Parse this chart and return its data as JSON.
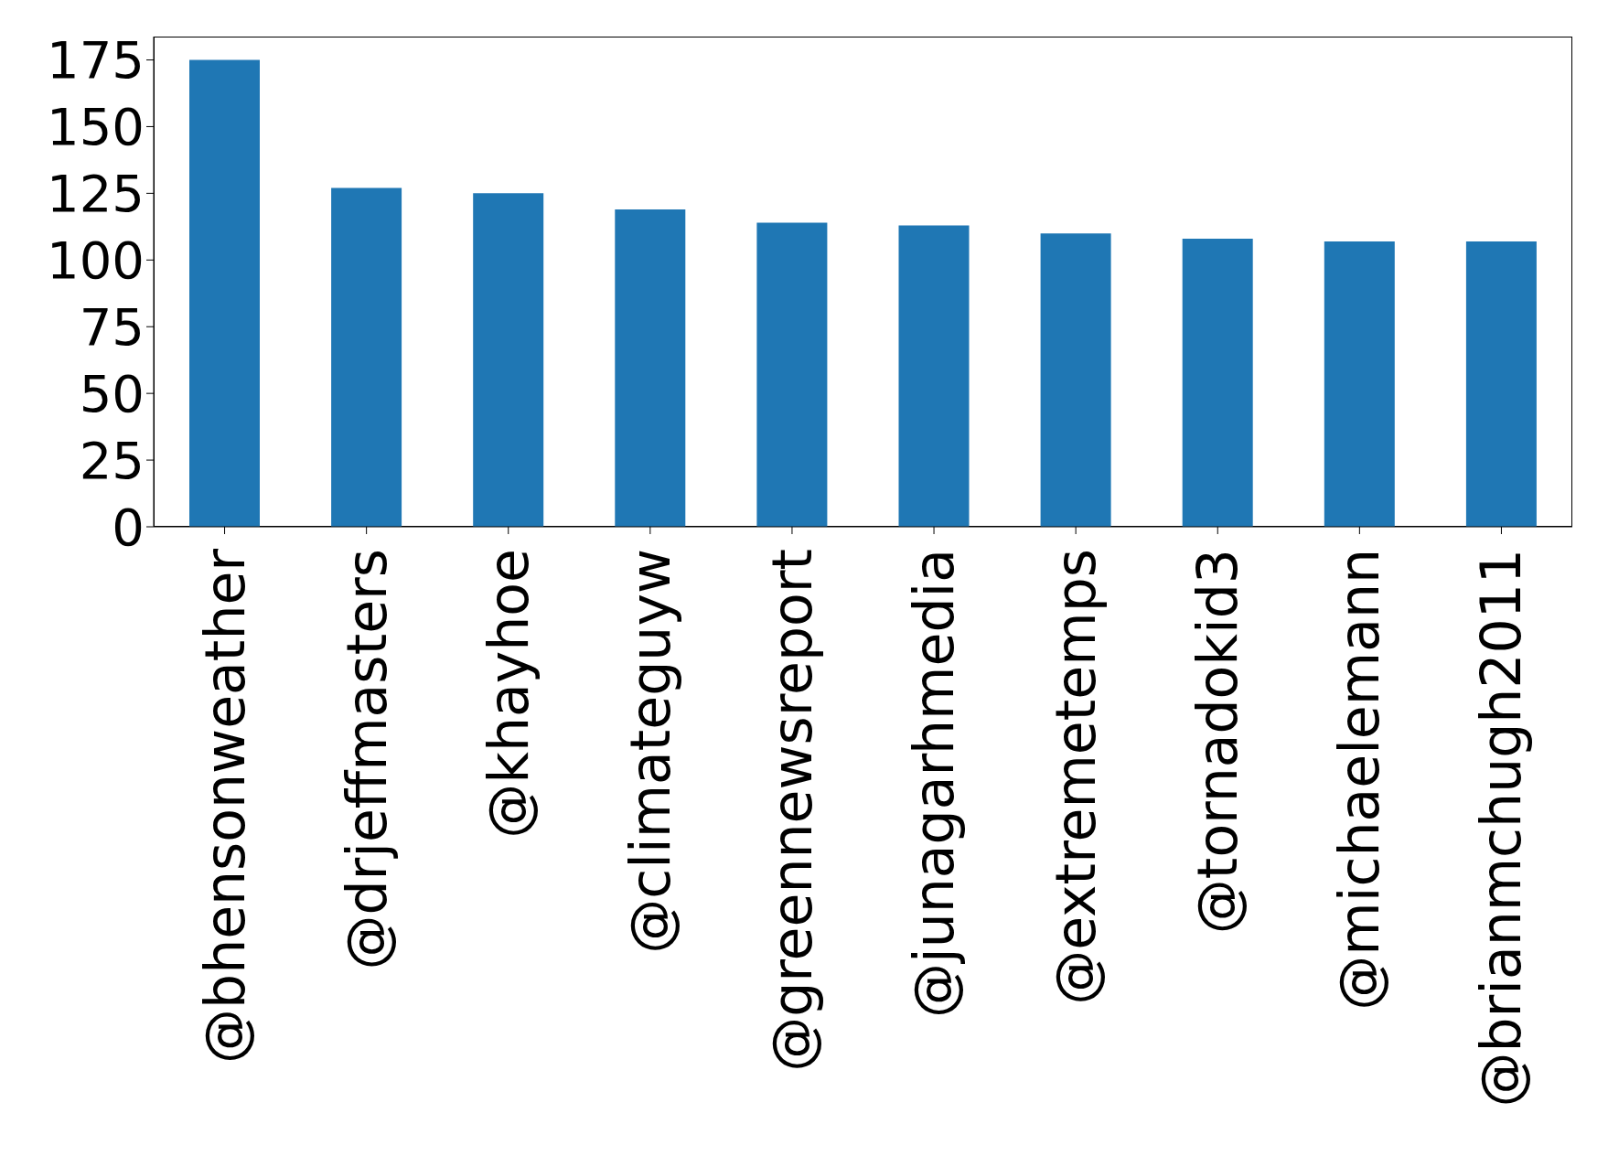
{
  "chart_data": {
    "type": "bar",
    "categories": [
      "@bhensonweather",
      "@drjeffmasters",
      "@khayhoe",
      "@climateguyw",
      "@greennewsreport",
      "@junagarhmedia",
      "@extremetemps",
      "@tornadokid3",
      "@michaelemann",
      "@brianmchugh2011"
    ],
    "values": [
      175,
      127,
      125,
      119,
      114,
      113,
      110,
      108,
      107,
      107
    ],
    "color": "#1f77b4",
    "ylim": [
      0,
      183.75
    ],
    "yticks": [
      0,
      25,
      50,
      75,
      100,
      125,
      150,
      175
    ]
  }
}
